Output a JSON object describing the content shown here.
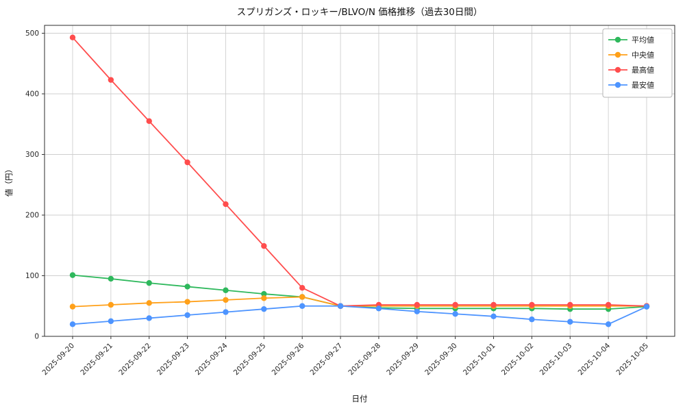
{
  "chart_data": {
    "type": "line",
    "title": "スプリガンズ・ロッキー/BLVO/N 価格推移（過去30日間）",
    "xlabel": "日付",
    "ylabel": "値（円）",
    "ylim": [
      0,
      500
    ],
    "yticks": [
      0,
      100,
      200,
      300,
      400,
      500
    ],
    "grid": true,
    "legend_position": "top-right",
    "categories": [
      "2025-09-20",
      "2025-09-21",
      "2025-09-22",
      "2025-09-23",
      "2025-09-24",
      "2025-09-25",
      "2025-09-26",
      "2025-09-27",
      "2025-09-28",
      "2025-09-29",
      "2025-09-30",
      "2025-10-01",
      "2025-10-02",
      "2025-10-03",
      "2025-10-04",
      "2025-10-05"
    ],
    "series": [
      {
        "name": "平均値",
        "color": "#2eb85c",
        "values": [
          101,
          95,
          88,
          82,
          76,
          70,
          65,
          50,
          47,
          46,
          46,
          46,
          46,
          45,
          45,
          49
        ]
      },
      {
        "name": "中央値",
        "color": "#ffa019",
        "values": [
          49,
          52,
          55,
          57,
          60,
          63,
          65,
          50,
          50,
          50,
          50,
          50,
          50,
          50,
          50,
          50
        ]
      },
      {
        "name": "最高値",
        "color": "#ff4d4d",
        "values": [
          493,
          423,
          355,
          287,
          218,
          149,
          80,
          50,
          52,
          52,
          52,
          52,
          52,
          52,
          52,
          50
        ]
      },
      {
        "name": "最安値",
        "color": "#4d94ff",
        "values": [
          20,
          25,
          30,
          35,
          40,
          45,
          50,
          50,
          46,
          41,
          37,
          33,
          28,
          24,
          20,
          49
        ]
      }
    ]
  }
}
